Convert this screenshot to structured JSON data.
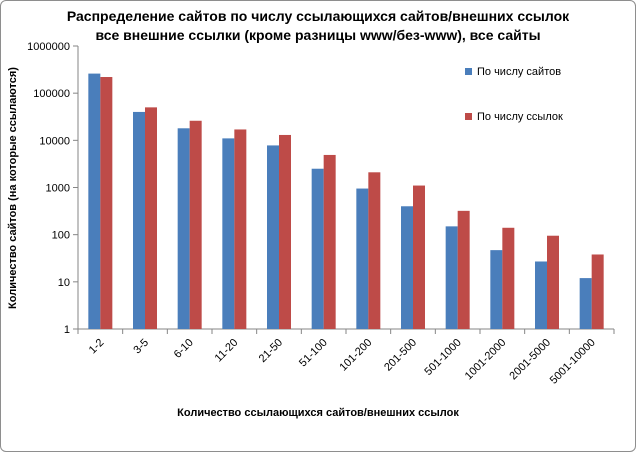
{
  "chart_data": {
    "type": "bar",
    "title": "Распределение сайтов по числу ссылающихся сайтов/внешних ссылок",
    "subtitle": "все внешние ссылки (кроме разницы www/без-www), все сайты",
    "xlabel": "Количество ссылающихся сайтов/внешних ссылок",
    "ylabel": "Количество сайтов (на которые ссылаются)",
    "yscale": "log",
    "ylim": [
      1,
      1000000
    ],
    "yticks": [
      "1",
      "10",
      "100",
      "1000",
      "10000",
      "100000",
      "1000000"
    ],
    "grid": false,
    "legend_position": "top-right",
    "categories": [
      "1-2",
      "3-5",
      "6-10",
      "11-20",
      "21-50",
      "51-100",
      "101-200",
      "201-500",
      "501-1000",
      "1001-2000",
      "2001-5000",
      "5001-10000"
    ],
    "series": [
      {
        "name": "По числу сайтов",
        "color": "#4a7ebb",
        "values": [
          260000,
          40000,
          18000,
          11000,
          7800,
          2500,
          950,
          400,
          150,
          47,
          27,
          12
        ]
      },
      {
        "name": "По числу ссылок",
        "color": "#be4b48",
        "values": [
          220000,
          50000,
          26000,
          17000,
          13000,
          4900,
          2100,
          1100,
          320,
          140,
          95,
          38
        ]
      }
    ]
  }
}
